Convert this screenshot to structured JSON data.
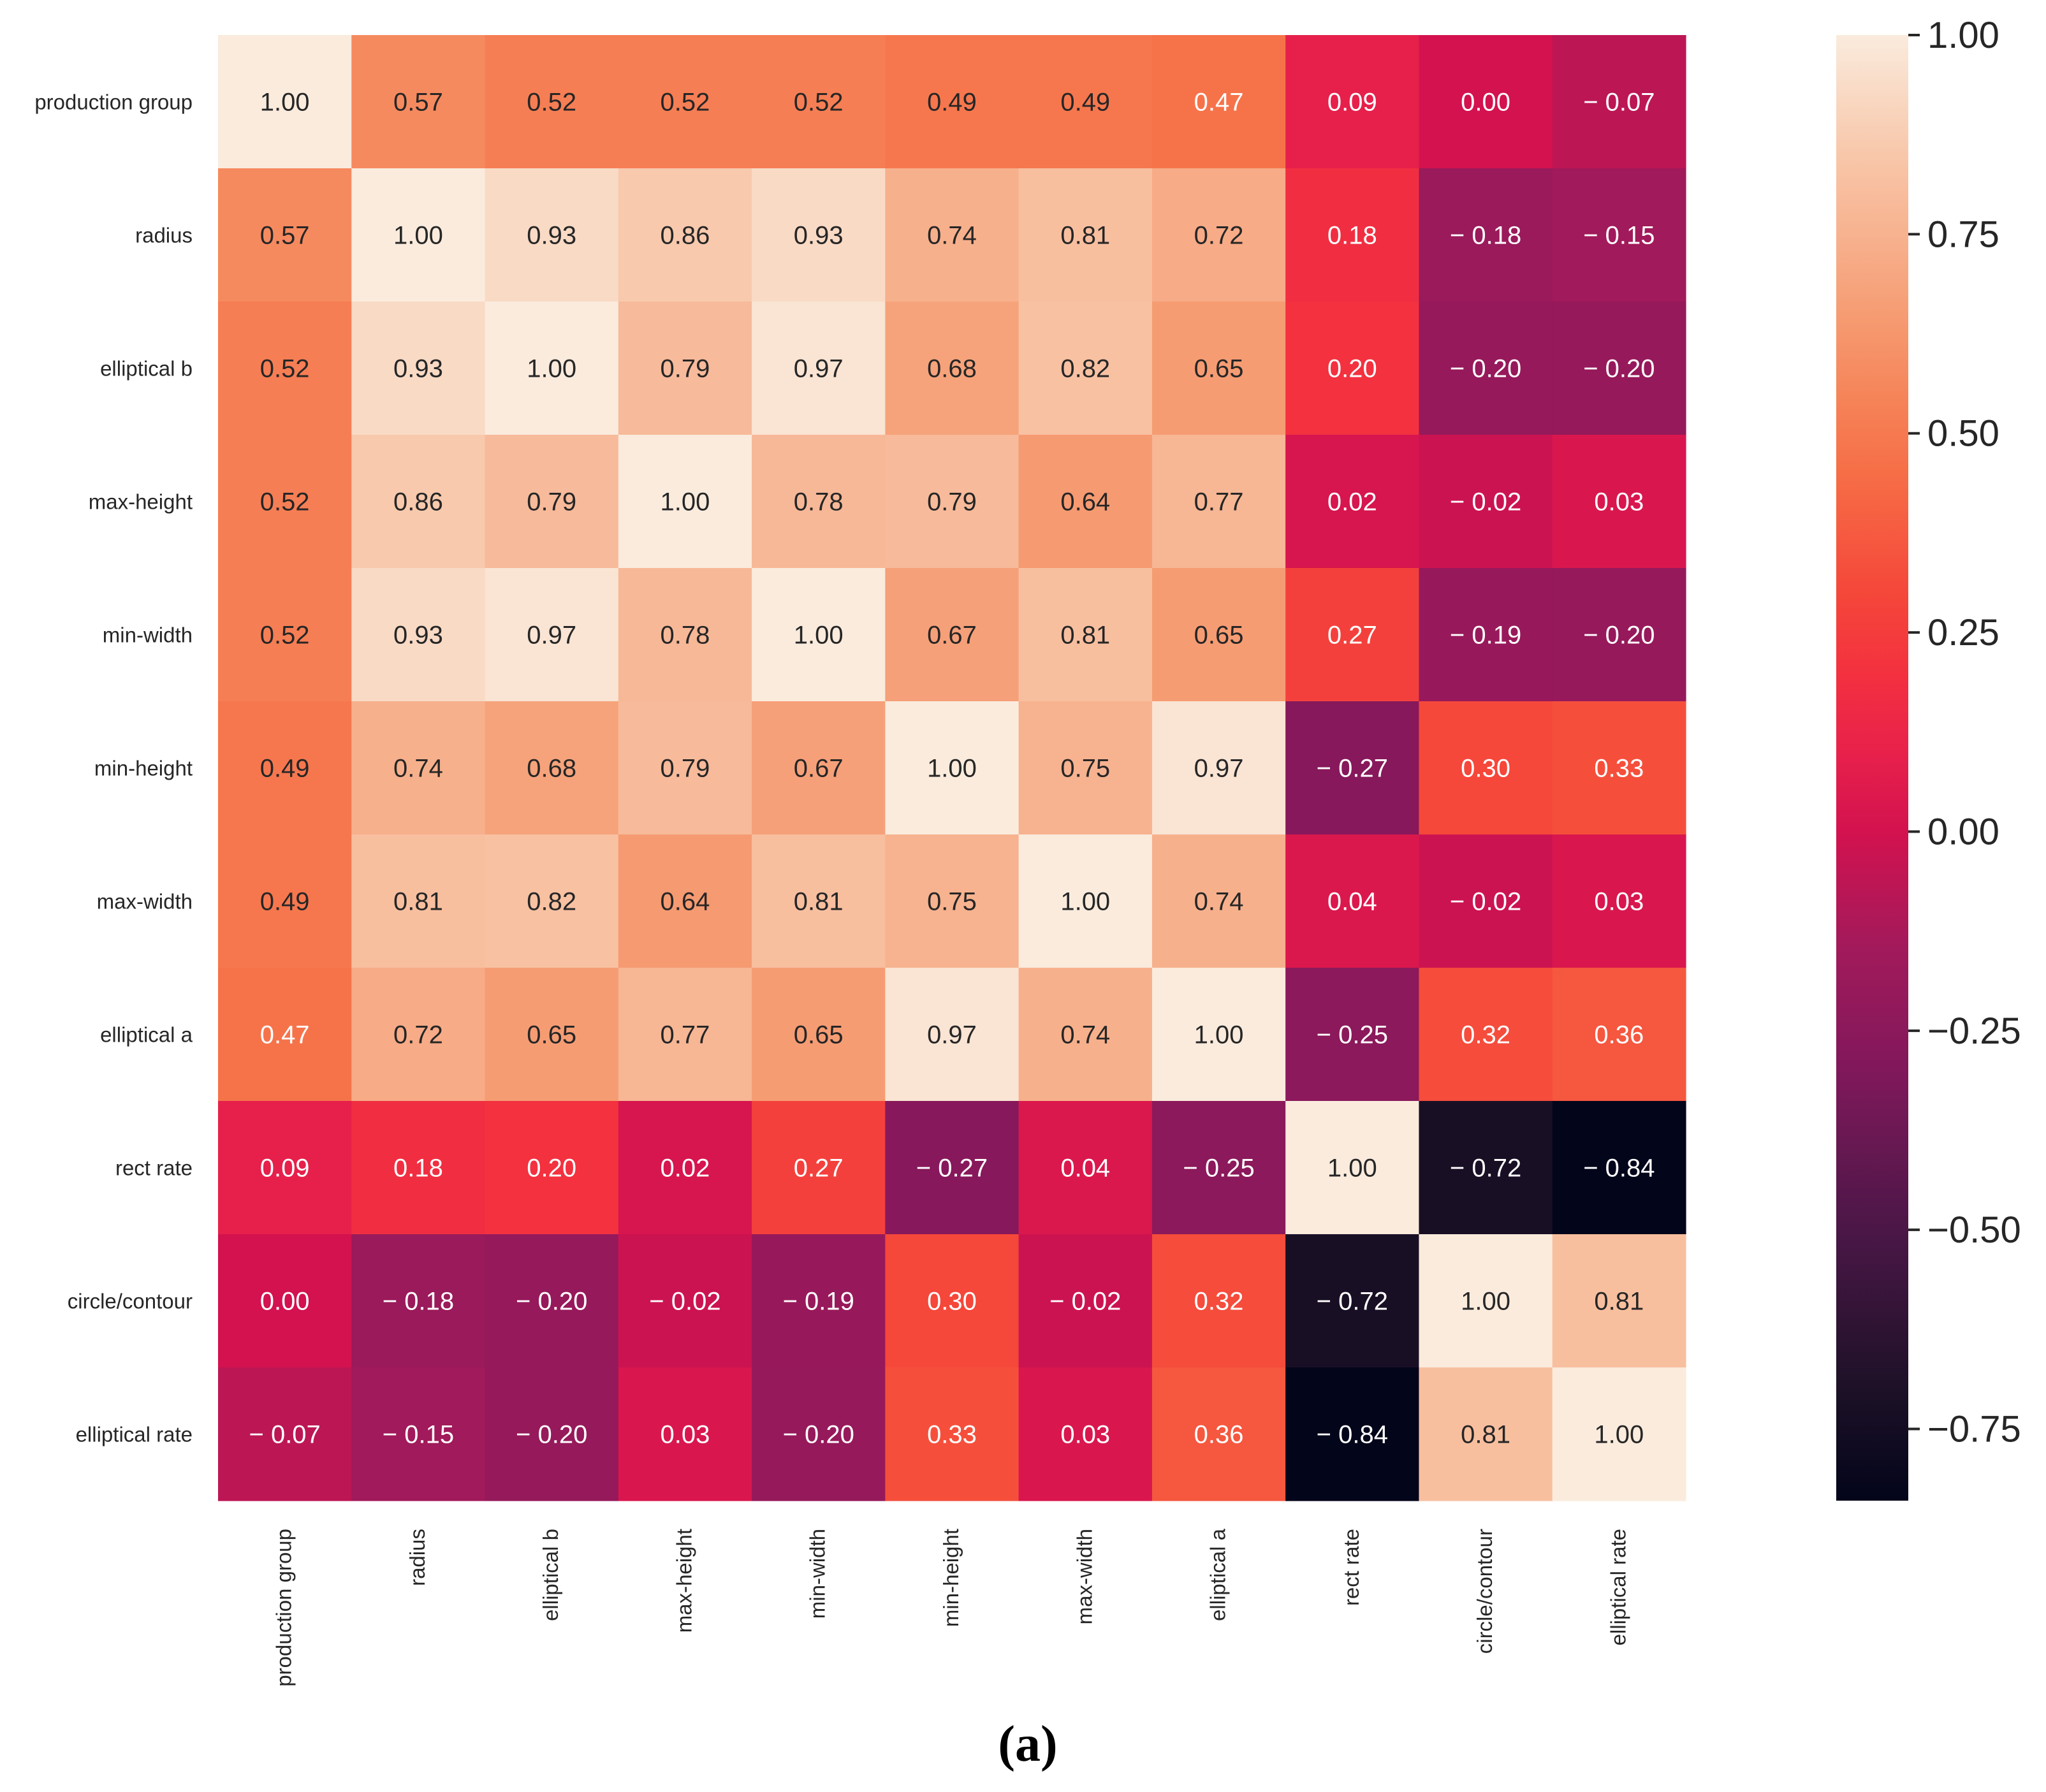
{
  "chart_data": {
    "type": "heatmap",
    "title": "",
    "xlabel": "",
    "ylabel": "",
    "labels": [
      "production group",
      "radius",
      "elliptical b",
      "max-height",
      "min-width",
      "min-height",
      "max-width",
      "elliptical a",
      "rect rate",
      "circle/contour",
      "elliptical rate"
    ],
    "matrix": [
      [
        1.0,
        0.57,
        0.52,
        0.52,
        0.52,
        0.49,
        0.49,
        0.47,
        0.09,
        0.0,
        -0.07
      ],
      [
        0.57,
        1.0,
        0.93,
        0.86,
        0.93,
        0.74,
        0.81,
        0.72,
        0.18,
        -0.18,
        -0.15
      ],
      [
        0.52,
        0.93,
        1.0,
        0.79,
        0.97,
        0.68,
        0.82,
        0.65,
        0.2,
        -0.2,
        -0.2
      ],
      [
        0.52,
        0.86,
        0.79,
        1.0,
        0.78,
        0.79,
        0.64,
        0.77,
        0.02,
        -0.02,
        0.03
      ],
      [
        0.52,
        0.93,
        0.97,
        0.78,
        1.0,
        0.67,
        0.81,
        0.65,
        0.27,
        -0.19,
        -0.2
      ],
      [
        0.49,
        0.74,
        0.68,
        0.79,
        0.67,
        1.0,
        0.75,
        0.97,
        -0.27,
        0.3,
        0.33
      ],
      [
        0.49,
        0.81,
        0.82,
        0.64,
        0.81,
        0.75,
        1.0,
        0.74,
        0.04,
        -0.02,
        0.03
      ],
      [
        0.47,
        0.72,
        0.65,
        0.77,
        0.65,
        0.97,
        0.74,
        1.0,
        -0.25,
        0.32,
        0.36
      ],
      [
        0.09,
        0.18,
        0.2,
        0.02,
        0.27,
        -0.27,
        0.04,
        -0.25,
        1.0,
        -0.72,
        -0.84
      ],
      [
        0.0,
        -0.18,
        -0.2,
        -0.02,
        -0.19,
        0.3,
        -0.02,
        0.32,
        -0.72,
        1.0,
        0.81
      ],
      [
        -0.07,
        -0.15,
        -0.2,
        0.03,
        -0.2,
        0.33,
        0.03,
        0.36,
        -0.84,
        0.81,
        1.0
      ]
    ],
    "colorbar": {
      "vmin": -0.84,
      "vmax": 1.0,
      "ticks": [
        1.0,
        0.75,
        0.5,
        0.25,
        0.0,
        -0.25,
        -0.5,
        -0.75
      ],
      "tick_labels": [
        "1.00",
        "0.75",
        "0.50",
        "0.25",
        "0.00",
        "−0.25",
        "−0.50",
        "−0.75"
      ],
      "colormap": "rocket",
      "color_stops": [
        {
          "value": -0.84,
          "color": "#03051a"
        },
        {
          "value": -0.7,
          "color": "#1d1127"
        },
        {
          "value": -0.5,
          "color": "#4b1747"
        },
        {
          "value": -0.3,
          "color": "#80185b"
        },
        {
          "value": -0.15,
          "color": "#a11a5b"
        },
        {
          "value": 0.0,
          "color": "#d3124f"
        },
        {
          "value": 0.1,
          "color": "#e8214b"
        },
        {
          "value": 0.2,
          "color": "#f3313f"
        },
        {
          "value": 0.3,
          "color": "#f5473a"
        },
        {
          "value": 0.45,
          "color": "#f66e46"
        },
        {
          "value": 0.55,
          "color": "#f6855a"
        },
        {
          "value": 0.65,
          "color": "#f69c73"
        },
        {
          "value": 0.75,
          "color": "#f7b28f"
        },
        {
          "value": 0.85,
          "color": "#f8c7aa"
        },
        {
          "value": 0.93,
          "color": "#f9dac5"
        },
        {
          "value": 1.0,
          "color": "#faebdd"
        }
      ]
    },
    "cell_format": "2 decimals, negative values shown with a spaced minus sign",
    "legend": "colorbar on the right"
  },
  "caption": "(a)"
}
